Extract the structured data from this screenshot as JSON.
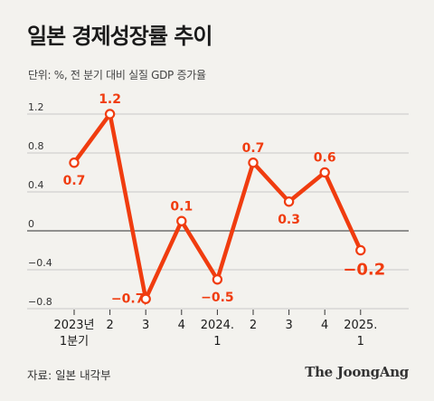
{
  "title": "일본 경제성장률 추이",
  "subtitle": "단위: %, 전 분기 대비 실질 GDP 증가율",
  "source": "자료: 일본 내각부",
  "brand": "The JoongAng",
  "colors": {
    "line": "#f03c0f",
    "grid": "#c8c8c8",
    "axis": "#555555",
    "text": "#1a1a1a"
  },
  "chart_data": {
    "type": "line",
    "categories": [
      [
        "2023년",
        "1분기"
      ],
      [
        "2"
      ],
      [
        "3"
      ],
      [
        "4"
      ],
      [
        "2024.",
        "1"
      ],
      [
        "2"
      ],
      [
        "3"
      ],
      [
        "4"
      ],
      [
        "2025.",
        "1"
      ]
    ],
    "values": [
      0.7,
      1.2,
      -0.7,
      0.1,
      -0.5,
      0.7,
      0.3,
      0.6,
      -0.2
    ],
    "value_labels": [
      "0.7",
      "1.2",
      "−0.7",
      "0.1",
      "−0.5",
      "0.7",
      "0.3",
      "0.6",
      "−0.2"
    ],
    "yticks": [
      1.2,
      0.8,
      0.4,
      0,
      -0.4,
      -0.8
    ],
    "ytick_labels": [
      "1.2",
      "0.8",
      "0.4",
      "0",
      "−0.4",
      "−0.8"
    ],
    "ylim": [
      -0.8,
      1.2
    ]
  }
}
